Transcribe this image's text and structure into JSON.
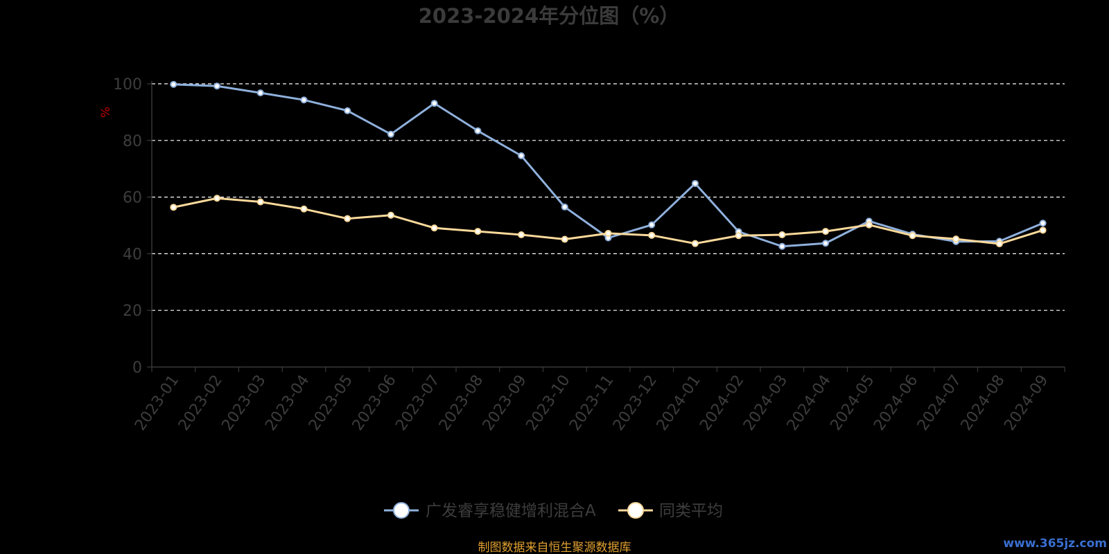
{
  "chart_data": {
    "type": "line",
    "title": "2023-2024年分位图（%）",
    "ylabel": "%",
    "ylim": [
      0,
      100
    ],
    "yticks": [
      0,
      20,
      40,
      60,
      80,
      100
    ],
    "grid": true,
    "legend_position": "bottom-center",
    "categories": [
      "2023-01",
      "2023-02",
      "2023-03",
      "2023-04",
      "2023-05",
      "2023-06",
      "2023-07",
      "2023-08",
      "2023-09",
      "2023-10",
      "2023-11",
      "2023-12",
      "2024-01",
      "2024-02",
      "2024-03",
      "2024-04",
      "2024-05",
      "2024-06",
      "2024-07",
      "2024-08",
      "2024-09"
    ],
    "series": [
      {
        "name": "广发睿享稳健增利混合A",
        "color": "#8fb0dc",
        "values": [
          99.8,
          99.2,
          96.8,
          94.3,
          90.5,
          82.2,
          93.1,
          83.4,
          74.6,
          56.5,
          45.6,
          50.2,
          64.8,
          47.8,
          42.6,
          43.7,
          51.5,
          46.9,
          44.3,
          44.4,
          50.8
        ]
      },
      {
        "name": "同类平均",
        "color": "#fbd99b",
        "values": [
          56.4,
          59.6,
          58.3,
          55.8,
          52.4,
          53.6,
          49.1,
          47.9,
          46.7,
          45.1,
          47.2,
          46.5,
          43.6,
          46.4,
          46.7,
          47.9,
          50.2,
          46.4,
          45.2,
          43.5,
          48.3
        ]
      }
    ]
  },
  "footer": {
    "source": "制图数据来自恒生聚源数据库",
    "watermark": "www.365jz.com"
  }
}
